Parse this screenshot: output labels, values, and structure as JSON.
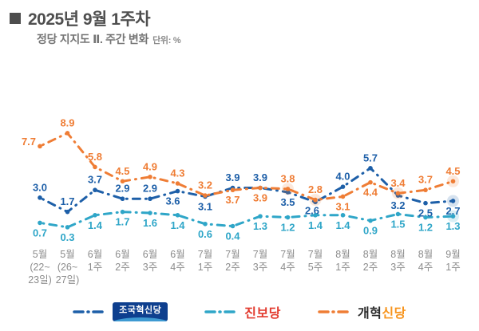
{
  "header": {
    "title": "2025년 9월 1주차",
    "subtitle": "정당 지지도  Ⅱ. 주간 변화",
    "unit_label": "단위: %"
  },
  "chart_data": {
    "type": "line",
    "unit": "%",
    "title": "정당 지지도 Ⅱ. 주간 변화",
    "ylim": [
      0,
      10
    ],
    "grid": false,
    "legend_position": "bottom",
    "line_style": "dash-dot",
    "categories": [
      [
        "5월",
        "(22~",
        "23일)"
      ],
      [
        "5월",
        "(26~",
        "27일)"
      ],
      [
        "6월",
        "1주"
      ],
      [
        "6월",
        "2주"
      ],
      [
        "6월",
        "3주"
      ],
      [
        "6월",
        "4주"
      ],
      [
        "7월",
        "1주"
      ],
      [
        "7월",
        "2주"
      ],
      [
        "7월",
        "3주"
      ],
      [
        "7월",
        "4주"
      ],
      [
        "7월",
        "5주"
      ],
      [
        "8월",
        "1주"
      ],
      [
        "8월",
        "2주"
      ],
      [
        "8월",
        "3주"
      ],
      [
        "8월",
        "4주"
      ],
      [
        "9월",
        "1주"
      ]
    ],
    "series": [
      {
        "name": "조국혁신당",
        "color": "#1d5fa8",
        "values": [
          3.0,
          1.7,
          3.7,
          2.9,
          2.9,
          3.6,
          3.1,
          3.9,
          3.9,
          3.5,
          2.6,
          4.0,
          5.7,
          3.2,
          2.5,
          2.7
        ],
        "label_side": [
          "above",
          "above",
          "above",
          "above",
          "above",
          "below",
          "below",
          "above",
          "above",
          "below",
          "below",
          "above",
          "above",
          "below",
          "below",
          "below"
        ],
        "halo_points": [
          15
        ],
        "label_offsets": {
          "5": {
            "dx": -6,
            "dy": 0
          },
          "10": {
            "dx": -4,
            "dy": -2
          }
        }
      },
      {
        "name": "진보당",
        "color": "#2fa6c8",
        "values": [
          0.7,
          0.3,
          1.4,
          1.7,
          1.6,
          1.4,
          0.6,
          0.4,
          1.3,
          1.2,
          1.4,
          1.4,
          0.9,
          1.5,
          1.2,
          1.3
        ],
        "label_side": [
          "below",
          "below",
          "below",
          "below",
          "below",
          "below",
          "below",
          "below",
          "below",
          "below",
          "below",
          "below",
          "below",
          "below",
          "below",
          "below"
        ],
        "halo_points": [
          15
        ],
        "label_offsets": {}
      },
      {
        "name": "개혁신당",
        "color": "#ef7d35",
        "values": [
          7.7,
          8.9,
          5.8,
          4.5,
          4.9,
          4.3,
          3.2,
          3.7,
          3.9,
          3.8,
          2.8,
          3.1,
          4.4,
          3.4,
          3.7,
          4.5
        ],
        "label_side": [
          "above",
          "above",
          "above",
          "above",
          "above",
          "above",
          "above",
          "below",
          "below",
          "above",
          "above",
          "below",
          "below",
          "above",
          "above",
          "above"
        ],
        "halo_points": [
          9,
          10,
          13,
          15
        ],
        "label_offsets": {
          "0": {
            "dx": -14,
            "dy": 7
          }
        }
      }
    ]
  },
  "legend": [
    {
      "label": "조국혁신당"
    },
    {
      "label": "진보당"
    },
    {
      "label_black": "개혁",
      "label_orange": "신당"
    }
  ],
  "colors": {
    "joguk_navy": "#0e3f8e",
    "joguk_wave": "#3e9ad2",
    "jinbo_red": "#e23a2e",
    "reform_orange": "#f7941d",
    "title_gray": "#4f4f4f",
    "axis_gray": "#8c8c8c"
  }
}
